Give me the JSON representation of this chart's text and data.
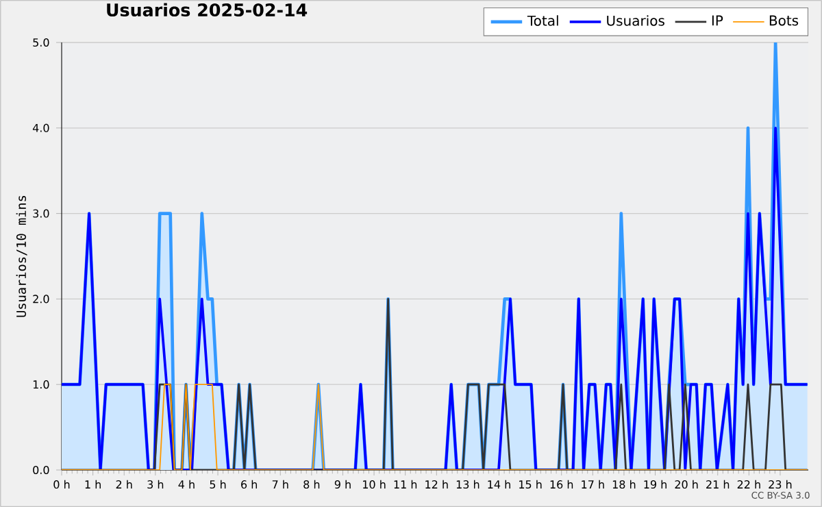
{
  "chart_data": {
    "type": "line",
    "title": "Usuarios 2025-02-14",
    "ylabel": "Usuarios/10 mins",
    "annotations": [
      "CC BY-SA 3.0"
    ],
    "xlim": [
      0,
      23.9
    ],
    "ylim": [
      0,
      5
    ],
    "xticks": [
      {
        "value": 0,
        "label": "0 h"
      },
      {
        "value": 1,
        "label": "1 h"
      },
      {
        "value": 2,
        "label": "2 h"
      },
      {
        "value": 3,
        "label": "3 h"
      },
      {
        "value": 4,
        "label": "4 h"
      },
      {
        "value": 5,
        "label": "5 h"
      },
      {
        "value": 6,
        "label": "6 h"
      },
      {
        "value": 7,
        "label": "7 h"
      },
      {
        "value": 8,
        "label": "8 h"
      },
      {
        "value": 9,
        "label": "9 h"
      },
      {
        "value": 10,
        "label": "10 h"
      },
      {
        "value": 11,
        "label": "11 h"
      },
      {
        "value": 12,
        "label": "12 h"
      },
      {
        "value": 13,
        "label": "13 h"
      },
      {
        "value": 14,
        "label": "14 h"
      },
      {
        "value": 15,
        "label": "15 h"
      },
      {
        "value": 16,
        "label": "16 h"
      },
      {
        "value": 17,
        "label": "17 h"
      },
      {
        "value": 18,
        "label": "18 h"
      },
      {
        "value": 19,
        "label": "19 h"
      },
      {
        "value": 20,
        "label": "20 h"
      },
      {
        "value": 21,
        "label": "21 h"
      },
      {
        "value": 22,
        "label": "22 h"
      },
      {
        "value": 23,
        "label": "23 h"
      }
    ],
    "yticks": [
      {
        "value": 0,
        "label": "0.0"
      },
      {
        "value": 1,
        "label": "1.0"
      },
      {
        "value": 2,
        "label": "2.0"
      },
      {
        "value": 3,
        "label": "3.0"
      },
      {
        "value": 4,
        "label": "4.0"
      },
      {
        "value": 5,
        "label": "5.0"
      }
    ],
    "grid": "y",
    "legend": "top right",
    "series": [
      {
        "name": "Total",
        "type": "area",
        "color": "#3399ff",
        "x": [
          0,
          0.58,
          0.88,
          1.24,
          1.42,
          2.6,
          2.78,
          2.97,
          3.14,
          3.48,
          3.61,
          3.85,
          3.98,
          4.12,
          4.31,
          4.49,
          4.68,
          4.82,
          4.97,
          5.12,
          5.34,
          5.51,
          5.67,
          5.85,
          6.02,
          6.21,
          8.04,
          8.22,
          8.39,
          9.4,
          9.57,
          9.75,
          10.31,
          10.45,
          10.6,
          12.29,
          12.47,
          12.65,
          12.84,
          13.01,
          13.35,
          13.5,
          13.67,
          13.99,
          14.18,
          14.36,
          14.52,
          15.03,
          15.18,
          15.91,
          16.05,
          16.18,
          16.37,
          16.55,
          16.71,
          16.89,
          17.07,
          17.25,
          17.43,
          17.57,
          17.73,
          17.91,
          18.23,
          18.61,
          18.79,
          18.96,
          19.3,
          19.44,
          19.62,
          19.78,
          19.96,
          20.14,
          20.32,
          20.44,
          20.61,
          20.8,
          20.98,
          21.32,
          21.49,
          21.67,
          21.81,
          21.97,
          22.15,
          22.34,
          22.53,
          22.69,
          22.85,
          23.17,
          23.87
        ],
        "values": [
          1,
          1,
          3,
          0,
          1,
          1,
          0,
          0,
          3,
          3,
          0,
          0,
          1,
          0,
          1,
          3,
          2,
          2,
          1,
          1,
          0,
          0,
          1,
          0,
          1,
          0,
          0,
          1,
          0,
          0,
          1,
          0,
          0,
          2,
          0,
          0,
          1,
          0,
          0,
          1,
          1,
          0,
          1,
          1,
          2,
          2,
          1,
          1,
          0,
          0,
          1,
          0,
          0,
          2,
          0,
          1,
          1,
          0,
          1,
          1,
          0,
          3,
          0,
          2,
          0,
          2,
          0,
          1,
          2,
          2,
          1,
          1,
          1,
          0,
          1,
          1,
          0,
          1,
          0,
          2,
          1,
          4,
          1,
          3,
          2,
          2,
          5,
          1,
          1
        ]
      },
      {
        "name": "Usuarios",
        "color": "#0000ff",
        "x": [
          0,
          0.58,
          0.88,
          1.24,
          1.42,
          2.6,
          2.78,
          2.97,
          3.14,
          3.58,
          4.17,
          4.31,
          4.49,
          4.68,
          5.12,
          5.34,
          9.4,
          9.57,
          9.75,
          12.29,
          12.47,
          12.65,
          13.99,
          14.36,
          14.52,
          15.03,
          15.18,
          16.37,
          16.55,
          16.71,
          16.89,
          17.07,
          17.25,
          17.43,
          17.57,
          17.73,
          17.91,
          18.23,
          18.61,
          18.79,
          18.96,
          19.3,
          19.62,
          19.78,
          19.96,
          20.14,
          20.32,
          20.44,
          20.61,
          20.8,
          20.98,
          21.32,
          21.49,
          21.67,
          21.81,
          21.97,
          22.15,
          22.34,
          22.69,
          22.85,
          23.17,
          23.87
        ],
        "values": [
          1,
          1,
          3,
          0,
          1,
          1,
          0,
          0,
          2,
          0,
          0,
          1,
          2,
          1,
          1,
          0,
          0,
          1,
          0,
          0,
          1,
          0,
          0,
          2,
          1,
          1,
          0,
          0,
          2,
          0,
          1,
          1,
          0,
          1,
          1,
          0,
          2,
          0,
          2,
          0,
          2,
          0,
          2,
          2,
          0,
          1,
          1,
          0,
          1,
          1,
          0,
          1,
          0,
          2,
          1,
          3,
          1,
          3,
          1,
          4,
          1,
          1
        ]
      },
      {
        "name": "IP",
        "color": "#333333",
        "x": [
          0,
          2.97,
          3.14,
          3.48,
          3.61,
          3.85,
          3.98,
          4.12,
          5.51,
          5.67,
          5.85,
          6.02,
          6.21,
          10.31,
          10.45,
          10.6,
          12.84,
          13.01,
          13.35,
          13.5,
          13.67,
          14.18,
          14.36,
          15.91,
          16.05,
          16.18,
          17.73,
          17.91,
          18.06,
          19.3,
          19.44,
          19.62,
          19.78,
          19.96,
          20.14,
          21.81,
          21.97,
          22.15,
          22.53,
          22.69,
          23.03,
          23.17,
          23.87
        ],
        "values": [
          0,
          0,
          1,
          1,
          0,
          0,
          1,
          0,
          0,
          1,
          0,
          1,
          0,
          0,
          2,
          0,
          0,
          1,
          1,
          0,
          1,
          1,
          0,
          0,
          1,
          0,
          0,
          1,
          0,
          0,
          1,
          0,
          0,
          1,
          0,
          0,
          1,
          0,
          0,
          1,
          1,
          0,
          0
        ]
      },
      {
        "name": "Bots",
        "color": "#ff9900",
        "x": [
          0,
          3.14,
          3.29,
          3.48,
          3.61,
          3.85,
          3.98,
          4.12,
          4.27,
          4.82,
          4.97,
          8.04,
          8.22,
          8.39,
          23.87
        ],
        "values": [
          0,
          0,
          1,
          1,
          0,
          0,
          1,
          0,
          1,
          1,
          0,
          0,
          1,
          0,
          0
        ]
      }
    ]
  }
}
